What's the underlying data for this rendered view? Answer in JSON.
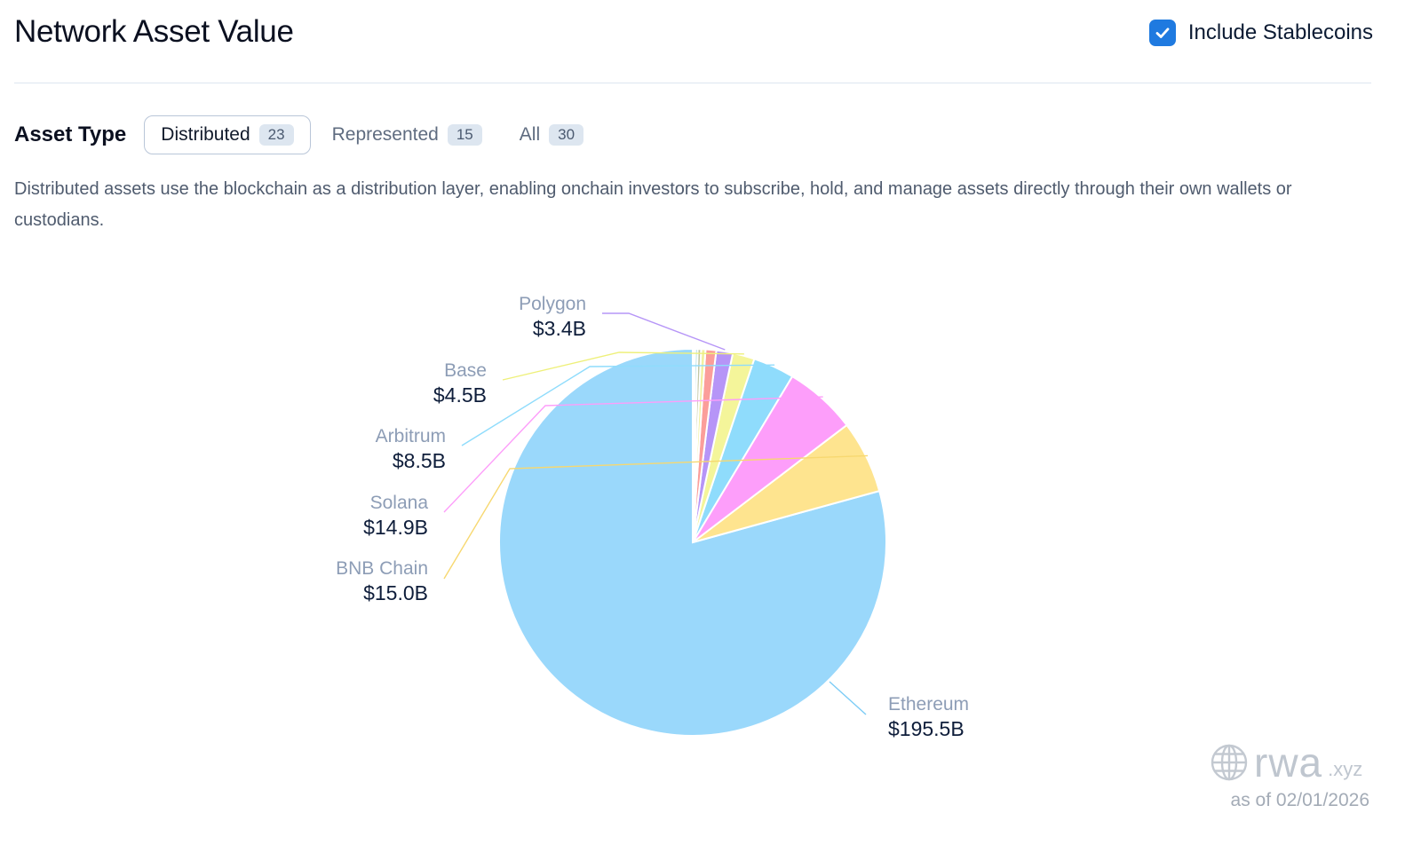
{
  "header": {
    "title": "Network Asset Value",
    "stablecoins_label": "Include Stablecoins",
    "stablecoins_checked": true,
    "accent_color": "#1f7ae0"
  },
  "asset_type": {
    "label": "Asset Type",
    "tabs": [
      {
        "label": "Distributed",
        "count": "23",
        "active": true
      },
      {
        "label": "Represented",
        "count": "15",
        "active": false
      },
      {
        "label": "All",
        "count": "30",
        "active": false
      }
    ]
  },
  "description": "Distributed assets use the blockchain as a distribution layer, enabling onchain investors to subscribe, hold, and manage assets directly through their own wallets or custodians.",
  "brand": {
    "name": "rwa",
    "tld": ".xyz",
    "icon": "globe-icon"
  },
  "as_of": "as of 02/01/2026",
  "chart_data": {
    "type": "pie",
    "start": "12 o'clock",
    "direction": "counter-clockwise",
    "slices": [
      {
        "label": "Ethereum",
        "value": 195.5,
        "display": "$195.5B",
        "color": "#9ad8fb"
      },
      {
        "label": "BNB Chain",
        "value": 15.0,
        "display": "$15.0B",
        "color": "#fee48f"
      },
      {
        "label": "Solana",
        "value": 14.9,
        "display": "$14.9B",
        "color": "#fd9efa"
      },
      {
        "label": "Arbitrum",
        "value": 8.5,
        "display": "$8.5B",
        "color": "#8fdcfc"
      },
      {
        "label": "Base",
        "value": 4.5,
        "display": "$4.5B",
        "color": "#f4f59a"
      },
      {
        "label": "Polygon",
        "value": 3.4,
        "display": "$3.4B",
        "color": "#b695f7"
      },
      {
        "value": 2.2,
        "color": "#fb9e9a"
      },
      {
        "value": 0.9,
        "color": "#f2f0a0"
      },
      {
        "value": 0.7,
        "color": "#c2c7a4"
      },
      {
        "value": 0.5,
        "color": "#8fcfd4"
      },
      {
        "value": 0.3,
        "color": "#f7b9a4"
      },
      {
        "value": 0.2,
        "color": "#e8a0b4"
      }
    ]
  }
}
